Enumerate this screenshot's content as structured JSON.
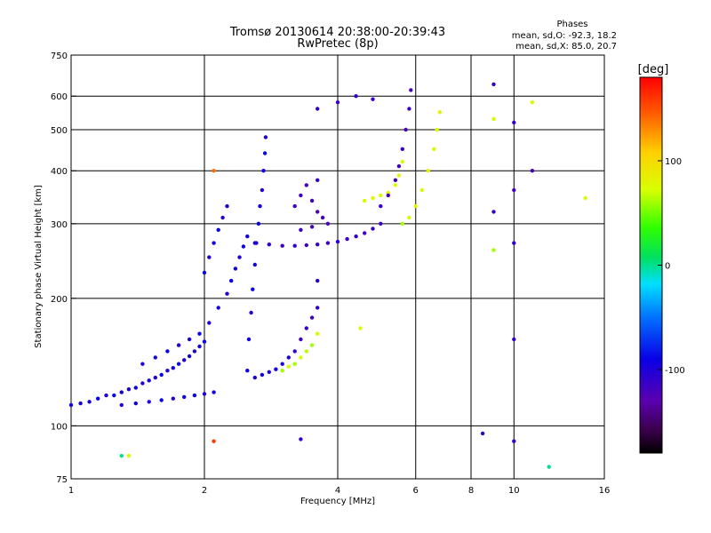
{
  "chart_data": {
    "type": "scatter",
    "title": "Tromsø 20130614 20:38:00-20:39:43",
    "subtitle": "RwPretec (8p)",
    "xlabel": "Frequency [MHz]",
    "ylabel": "Stationary phase Virtual Height [km]",
    "x_scale": "log",
    "y_scale": "log",
    "xlim": [
      1,
      16
    ],
    "ylim": [
      75,
      750
    ],
    "x_ticks": [
      1,
      2,
      4,
      6,
      8,
      10,
      16
    ],
    "x_tick_labels": [
      "1",
      "2",
      "4",
      "6",
      "8",
      "10",
      "16"
    ],
    "y_ticks": [
      75,
      100,
      200,
      300,
      400,
      500,
      600,
      750
    ],
    "y_tick_labels": [
      "75",
      "100",
      "200",
      "300",
      "400",
      "500",
      "600",
      "750"
    ],
    "grid": true,
    "color_variable": "phase",
    "stats": {
      "heading": "Phases",
      "line1": "mean, sd,O: -92.3, 18.2",
      "line2": "mean, sd,X: 85.0, 20.7"
    },
    "colorbar": {
      "label": "[deg]",
      "range": [
        -180,
        180
      ],
      "tick_values": [
        100,
        0,
        -100
      ],
      "tick_labels": [
        "100",
        "0",
        "-100"
      ],
      "colormap": "rainbow"
    },
    "traces": [
      {
        "points": [
          [
            1.0,
            112,
            -90
          ],
          [
            1.05,
            113,
            -100
          ],
          [
            1.1,
            114,
            -95
          ],
          [
            1.15,
            116,
            -90
          ],
          [
            1.2,
            118,
            -100
          ],
          [
            1.25,
            118,
            -85
          ],
          [
            1.3,
            120,
            -95
          ],
          [
            1.35,
            122,
            -100
          ],
          [
            1.4,
            123,
            -90
          ],
          [
            1.45,
            126,
            -100
          ],
          [
            1.5,
            128,
            -95
          ],
          [
            1.55,
            130,
            -100
          ],
          [
            1.6,
            132,
            -90
          ],
          [
            1.65,
            135,
            -100
          ],
          [
            1.7,
            137,
            -95
          ],
          [
            1.75,
            140,
            -85
          ],
          [
            1.8,
            143,
            -100
          ],
          [
            1.85,
            146,
            -90
          ],
          [
            1.9,
            150,
            -100
          ],
          [
            1.95,
            154,
            -95
          ],
          [
            2.0,
            158,
            -90
          ]
        ]
      },
      {
        "points": [
          [
            1.3,
            112,
            -100
          ],
          [
            1.4,
            113,
            -95
          ],
          [
            1.5,
            114,
            -100
          ],
          [
            1.6,
            115,
            -90
          ],
          [
            1.7,
            116,
            -100
          ],
          [
            1.8,
            117,
            -95
          ],
          [
            1.9,
            118,
            -90
          ],
          [
            2.0,
            119,
            -100
          ],
          [
            2.1,
            120,
            -95
          ]
        ]
      },
      {
        "points": [
          [
            1.45,
            140,
            -100
          ],
          [
            1.55,
            145,
            -95
          ],
          [
            1.65,
            150,
            -90
          ],
          [
            1.75,
            155,
            -100
          ],
          [
            1.85,
            160,
            -95
          ],
          [
            1.95,
            165,
            -90
          ],
          [
            2.05,
            175,
            -100
          ],
          [
            2.15,
            190,
            -95
          ],
          [
            2.25,
            205,
            -100
          ],
          [
            2.3,
            220,
            -90
          ],
          [
            2.35,
            235,
            -95
          ],
          [
            2.4,
            250,
            -100
          ],
          [
            2.45,
            265,
            -90
          ],
          [
            2.5,
            280,
            -95
          ]
        ]
      },
      {
        "points": [
          [
            2.0,
            230,
            -90
          ],
          [
            2.05,
            250,
            -100
          ],
          [
            2.1,
            270,
            -95
          ],
          [
            2.15,
            290,
            -90
          ],
          [
            2.2,
            310,
            -100
          ],
          [
            2.25,
            330,
            -95
          ]
        ]
      },
      {
        "points": [
          [
            2.5,
            135,
            -90
          ],
          [
            2.52,
            160,
            -95
          ],
          [
            2.55,
            185,
            -100
          ],
          [
            2.57,
            210,
            -90
          ],
          [
            2.6,
            240,
            -95
          ],
          [
            2.62,
            270,
            -100
          ],
          [
            2.65,
            300,
            -90
          ],
          [
            2.67,
            330,
            -95
          ],
          [
            2.7,
            360,
            -100
          ],
          [
            2.72,
            400,
            -95
          ],
          [
            2.74,
            440,
            -90
          ],
          [
            2.75,
            480,
            -100
          ]
        ]
      },
      {
        "points": [
          [
            2.6,
            130,
            -100
          ],
          [
            2.7,
            132,
            -95
          ],
          [
            2.8,
            134,
            -100
          ],
          [
            2.9,
            136,
            -95
          ],
          [
            3.0,
            140,
            -100
          ],
          [
            3.1,
            145,
            -95
          ],
          [
            3.2,
            150,
            -110
          ],
          [
            3.3,
            160,
            -115
          ],
          [
            3.4,
            170,
            -110
          ],
          [
            3.5,
            180,
            -115
          ],
          [
            3.6,
            190,
            -110
          ]
        ]
      },
      {
        "points": [
          [
            3.0,
            135,
            60
          ],
          [
            3.1,
            138,
            70
          ],
          [
            3.2,
            140,
            60
          ],
          [
            3.3,
            145,
            70
          ],
          [
            3.4,
            150,
            65
          ],
          [
            3.5,
            155,
            60
          ],
          [
            3.6,
            165,
            70
          ]
        ]
      },
      {
        "points": [
          [
            2.6,
            270,
            -100
          ],
          [
            2.8,
            268,
            -110
          ],
          [
            3.0,
            266,
            -115
          ],
          [
            3.2,
            266,
            -110
          ],
          [
            3.4,
            267,
            -115
          ],
          [
            3.6,
            268,
            -110
          ],
          [
            3.8,
            270,
            -115
          ],
          [
            4.0,
            272,
            -110
          ],
          [
            4.2,
            276,
            -115
          ],
          [
            4.4,
            280,
            -110
          ],
          [
            4.6,
            285,
            -115
          ],
          [
            4.8,
            292,
            -110
          ],
          [
            5.0,
            300,
            -115
          ]
        ]
      },
      {
        "points": [
          [
            3.2,
            330,
            -120
          ],
          [
            3.3,
            350,
            -115
          ],
          [
            3.4,
            370,
            -120
          ],
          [
            3.5,
            340,
            -115
          ],
          [
            3.6,
            320,
            -120
          ],
          [
            3.7,
            310,
            -115
          ],
          [
            3.8,
            300,
            -120
          ],
          [
            3.3,
            290,
            -115
          ],
          [
            3.5,
            295,
            -120
          ]
        ]
      },
      {
        "points": [
          [
            4.6,
            340,
            70
          ],
          [
            4.8,
            345,
            80
          ],
          [
            5.0,
            350,
            70
          ],
          [
            5.2,
            355,
            80
          ],
          [
            5.4,
            370,
            75
          ],
          [
            5.5,
            390,
            80
          ],
          [
            5.6,
            420,
            70
          ]
        ]
      },
      {
        "points": [
          [
            5.0,
            330,
            -115
          ],
          [
            5.2,
            350,
            -120
          ],
          [
            5.4,
            380,
            -115
          ],
          [
            5.5,
            410,
            -120
          ],
          [
            5.6,
            450,
            -115
          ],
          [
            5.7,
            500,
            -120
          ],
          [
            5.8,
            560,
            -115
          ],
          [
            5.85,
            620,
            -120
          ]
        ]
      },
      {
        "points": [
          [
            5.6,
            300,
            60
          ],
          [
            5.8,
            310,
            70
          ],
          [
            6.0,
            330,
            80
          ],
          [
            6.2,
            360,
            70
          ],
          [
            6.4,
            400,
            80
          ],
          [
            6.6,
            450,
            70
          ],
          [
            6.7,
            500,
            75
          ],
          [
            6.8,
            550,
            80
          ]
        ]
      },
      {
        "points": [
          [
            3.6,
            560,
            -110
          ],
          [
            4.0,
            580,
            -115
          ],
          [
            4.4,
            600,
            -110
          ],
          [
            4.8,
            590,
            -115
          ],
          [
            3.6,
            380,
            -110
          ],
          [
            3.6,
            220,
            -105
          ],
          [
            4.5,
            170,
            75
          ],
          [
            9.0,
            640,
            -110
          ],
          [
            9.0,
            530,
            70
          ],
          [
            10.0,
            520,
            -110
          ],
          [
            10.0,
            360,
            -115
          ],
          [
            10.0,
            270,
            -110
          ],
          [
            10.0,
            160,
            -110
          ],
          [
            10.0,
            92,
            -110
          ],
          [
            9.0,
            260,
            60
          ],
          [
            9.0,
            320,
            -110
          ],
          [
            11.0,
            400,
            -120
          ],
          [
            8.5,
            96,
            -110
          ],
          [
            2.1,
            400,
            140
          ],
          [
            2.1,
            92,
            160
          ],
          [
            3.3,
            93,
            -110
          ],
          [
            1.3,
            85,
            0
          ],
          [
            1.35,
            85,
            70
          ],
          [
            12.0,
            80,
            0
          ],
          [
            14.5,
            345,
            70
          ],
          [
            11.0,
            580,
            70
          ]
        ]
      }
    ]
  }
}
